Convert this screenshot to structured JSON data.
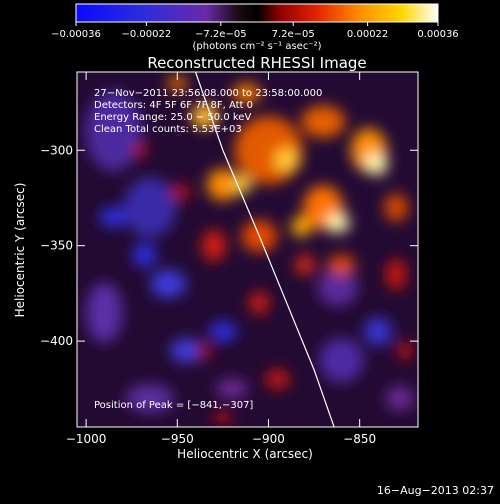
{
  "colorbar": {
    "ticks": [
      {
        "value": -0.00036,
        "label": "−0.00036"
      },
      {
        "value": -0.00022,
        "label": "−0.00022"
      },
      {
        "value": -7.2e-05,
        "label": "−7.2e−05"
      },
      {
        "value": 7.2e-05,
        "label": "7.2e−05"
      },
      {
        "value": 0.00022,
        "label": "0.00022"
      },
      {
        "value": 0.00036,
        "label": "0.00036"
      }
    ],
    "range": [
      -0.00036,
      0.00036
    ],
    "units": "(photons cm⁻² s⁻¹ asec⁻²)"
  },
  "chart_data": {
    "type": "heatmap",
    "title": "Reconstructed RHESSI Image",
    "xlabel": "Heliocentric X (arcsec)",
    "ylabel": "Heliocentric Y (arcsec)",
    "xlim": [
      -1005,
      -818
    ],
    "ylim": [
      -445,
      -259
    ],
    "xticks": [
      -1000,
      -950,
      -900,
      -850
    ],
    "yticks": [
      -300,
      -350,
      -400
    ],
    "tick_labels_x": [
      "−1000",
      "−950",
      "−900",
      "−850"
    ],
    "tick_labels_y": [
      "−300",
      "−350",
      "−400"
    ],
    "colormap": "blue-purple-red-yellow-white (rainbow/heat)",
    "limb": {
      "points": [
        [
          -940,
          -259
        ],
        [
          -925,
          -300
        ],
        [
          -905,
          -345
        ],
        [
          -890,
          -380
        ],
        [
          -875,
          -415
        ],
        [
          -864,
          -445
        ]
      ],
      "color": "#ffffff"
    },
    "peak": [
      -841,
      -307
    ],
    "bright_regions": [
      {
        "x": -841,
        "y": -307,
        "level": 0.95
      },
      {
        "x": -862,
        "y": -338,
        "level": 0.85
      },
      {
        "x": -915,
        "y": -318,
        "level": 0.7
      },
      {
        "x": -890,
        "y": -305,
        "level": 0.7
      },
      {
        "x": -935,
        "y": -282,
        "level": 0.55
      }
    ],
    "annotations": {
      "line1": "27−Nov−2011 23:56:08.000 to 23:58:00.000",
      "line2": "Detectors: 4F 5F 6F 7F 8F, Att 0",
      "line3": "Energy Range: 25.0 − 50.0 keV",
      "line4": "Clean    Total counts: 5.53E+03",
      "peak_label": "Position of Peak = [−841,−307]"
    }
  },
  "footer": {
    "date": "16−Aug−2013 02:37"
  }
}
